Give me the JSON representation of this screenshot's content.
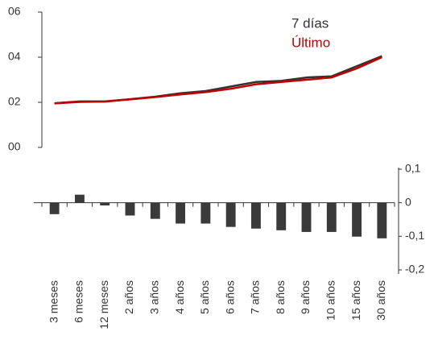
{
  "chart_data": [
    {
      "type": "line",
      "series": [
        {
          "name": "7 días",
          "color": "#333333",
          "values": [
            0.196,
            0.204,
            0.204,
            0.214,
            0.225,
            0.24,
            0.25,
            0.27,
            0.29,
            0.295,
            0.31,
            0.315,
            0.36,
            0.405
          ]
        },
        {
          "name": "Último",
          "color": "#c00000",
          "values": [
            0.195,
            0.202,
            0.203,
            0.213,
            0.223,
            0.235,
            0.245,
            0.26,
            0.28,
            0.29,
            0.3,
            0.31,
            0.35,
            0.4
          ]
        }
      ],
      "ylim": [
        0,
        0.6
      ],
      "yticks": [
        {
          "value": 0,
          "label": "00"
        },
        {
          "value": 0.2,
          "label": "02"
        },
        {
          "value": 0.4,
          "label": "04"
        },
        {
          "value": 0.6,
          "label": "06"
        }
      ],
      "legend": "upper right"
    },
    {
      "type": "bar",
      "categories": [
        "3 meses",
        "6 meses",
        "12 meses",
        "2 años",
        "3 años",
        "4 años",
        "5 años",
        "6 años",
        "7 años",
        "8 años",
        "9 años",
        "10 años",
        "15 años",
        "30 años"
      ],
      "values": [
        -0.034,
        0.024,
        -0.008,
        -0.038,
        -0.048,
        -0.062,
        -0.062,
        -0.072,
        -0.077,
        -0.082,
        -0.087,
        -0.087,
        -0.101,
        -0.106
      ],
      "color": "#3a3a3a",
      "ylim": [
        -0.2,
        0.1
      ],
      "yticks": [
        {
          "value": 0.1,
          "label": "0,1"
        },
        0,
        {
          "value": -0.1,
          "label": "-0,1"
        },
        {
          "value": -0.2,
          "label": "-0,2"
        }
      ],
      "y_axis_position": "right"
    }
  ]
}
